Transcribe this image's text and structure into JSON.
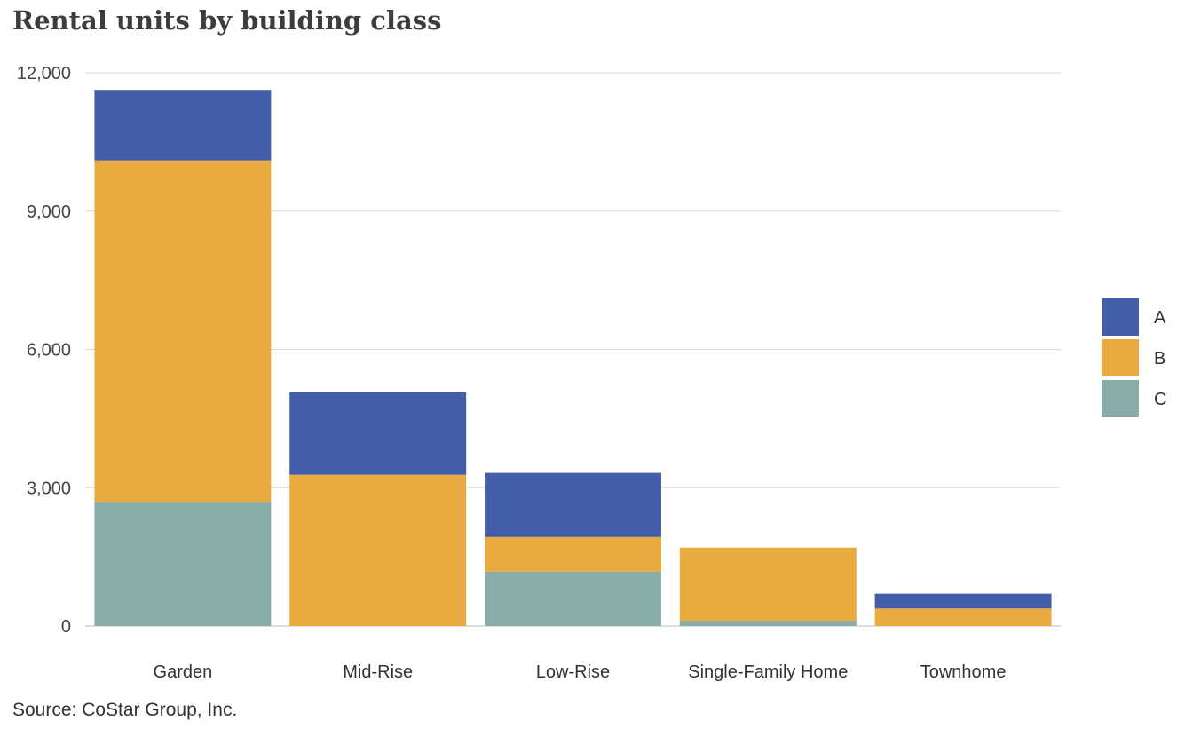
{
  "chart_data": {
    "type": "bar",
    "stacked": true,
    "title": "Rental units by building class",
    "xlabel": "",
    "ylabel": "",
    "categories": [
      "Garden",
      "Mid-Rise",
      "Low-Rise",
      "Single-Family Home",
      "Townhome"
    ],
    "series": [
      {
        "name": "C",
        "color": "#8aaca9",
        "values": [
          2700,
          0,
          1180,
          120,
          0
        ]
      },
      {
        "name": "B",
        "color": "#e9aa40",
        "values": [
          7400,
          3280,
          750,
          1580,
          380
        ]
      },
      {
        "name": "A",
        "color": "#445da8",
        "values": [
          1530,
          1790,
          1390,
          0,
          320
        ]
      }
    ],
    "ylim": [
      0,
      12000
    ],
    "yticks": [
      0,
      3000,
      6000,
      9000,
      12000
    ],
    "ytick_labels": [
      "0",
      "3,000",
      "6,000",
      "9,000",
      "12,000"
    ],
    "legend_order": [
      "A",
      "B",
      "C"
    ],
    "legend_position": "right",
    "grid": true
  },
  "footer": {
    "source": "Source: CoStar Group, Inc."
  }
}
